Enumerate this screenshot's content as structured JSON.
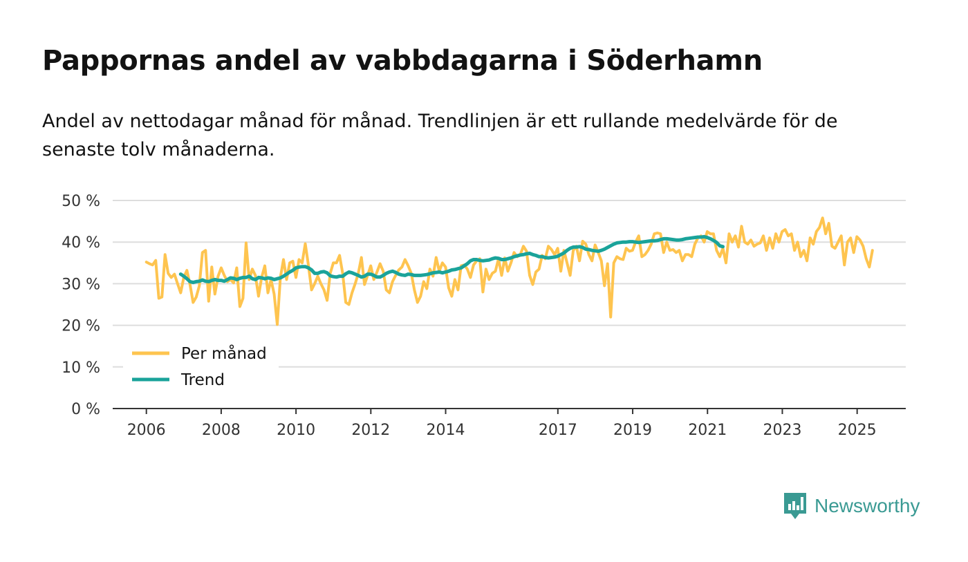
{
  "header": {
    "title": "Pappornas andel av vabbdagarna i Söderhamn",
    "subtitle": "Andel av nettodagar månad för månad. Trendlinjen är ett rullande medelvärde för de senaste tolv månaderna."
  },
  "brand": {
    "name": "Newsworthy",
    "icon": "bar-chart-icon",
    "color": "#3a9a93"
  },
  "colors": {
    "monthly": "#FEC44F",
    "trend": "#1AA39A",
    "grid": "#dddddd",
    "axis": "#333333"
  },
  "chart_data": {
    "type": "line",
    "title": "Pappornas andel av vabbdagarna i Söderhamn",
    "ylabel": "",
    "xlabel": "",
    "ylim": [
      0,
      50
    ],
    "xlim": [
      2005.1,
      2026.3
    ],
    "y_ticks": [
      0,
      10,
      20,
      30,
      40,
      50
    ],
    "y_tick_labels": [
      "0 %",
      "10 %",
      "20 %",
      "30 %",
      "40 %",
      "50 %"
    ],
    "x_ticks": [
      2006,
      2008,
      2010,
      2012,
      2014,
      2017,
      2019,
      2021,
      2023,
      2025
    ],
    "x_tick_labels": [
      "2006",
      "2008",
      "2010",
      "2012",
      "2014",
      "2017",
      "2019",
      "2021",
      "2023",
      "2025"
    ],
    "legend_position": "bottom-left",
    "series": [
      {
        "name": "Per månad",
        "color": "#FEC44F",
        "start_year": 2006.0,
        "step": 0.0833,
        "values": [
          35.2,
          34.8,
          34.5,
          35.6,
          26.5,
          26.8,
          37.0,
          32.5,
          31.5,
          32.3,
          30.0,
          27.8,
          31.5,
          33.2,
          29.8,
          25.5,
          26.8,
          29.5,
          37.5,
          38.0,
          25.8,
          34.0,
          27.5,
          31.8,
          33.8,
          32.0,
          30.5,
          31.0,
          30.2,
          33.8,
          24.5,
          26.5,
          39.8,
          31.0,
          33.5,
          32.0,
          27.0,
          31.5,
          34.3,
          27.8,
          31.0,
          27.5,
          20.2,
          31.5,
          35.8,
          31.0,
          35.0,
          35.4,
          31.5,
          35.8,
          35.0,
          39.6,
          34.5,
          28.5,
          30.0,
          31.8,
          30.0,
          28.5,
          26.0,
          32.5,
          35.0,
          35.0,
          36.8,
          32.5,
          25.5,
          25.0,
          27.8,
          30.0,
          32.5,
          36.3,
          29.8,
          32.0,
          34.3,
          31.0,
          32.8,
          34.8,
          33.0,
          28.5,
          27.8,
          30.5,
          32.0,
          33.3,
          34.0,
          35.8,
          34.3,
          32.5,
          28.5,
          25.5,
          27.0,
          30.5,
          28.8,
          33.5,
          31.8,
          36.3,
          33.0,
          35.0,
          34.0,
          29.0,
          27.0,
          31.0,
          28.5,
          34.3,
          34.5,
          33.5,
          31.5,
          34.5,
          35.5,
          36.0,
          28.0,
          33.5,
          31.0,
          32.5,
          33.0,
          36.0,
          32.0,
          36.2,
          33.0,
          35.0,
          37.5,
          36.5,
          37.0,
          39.0,
          37.8,
          32.0,
          29.8,
          32.8,
          33.5,
          36.8,
          36.0,
          39.0,
          38.2,
          37.0,
          38.5,
          33.0,
          38.0,
          35.0,
          32.0,
          38.0,
          39.0,
          35.5,
          40.2,
          39.5,
          37.0,
          35.5,
          39.3,
          37.5,
          35.5,
          29.5,
          34.8,
          22.0,
          35.0,
          36.5,
          36.0,
          35.8,
          38.5,
          37.8,
          38.0,
          40.0,
          41.5,
          36.5,
          37.0,
          38.0,
          39.5,
          42.0,
          42.2,
          42.0,
          37.5,
          40.0,
          38.0,
          38.2,
          37.5,
          38.0,
          35.5,
          37.0,
          37.0,
          36.5,
          39.5,
          41.0,
          41.5,
          40.0,
          42.5,
          42.0,
          42.0,
          38.0,
          36.5,
          38.5,
          35.0,
          42.0,
          40.0,
          41.5,
          38.8,
          43.8,
          40.0,
          39.5,
          40.5,
          39.0,
          39.5,
          39.8,
          41.5,
          38.0,
          41.0,
          38.5,
          42.0,
          40.0,
          42.5,
          43.0,
          41.5,
          42.0,
          38.0,
          40.0,
          36.5,
          38.0,
          35.5,
          41.0,
          39.5,
          42.5,
          43.5,
          45.8,
          42.0,
          44.5,
          39.0,
          38.5,
          40.0,
          41.5,
          34.5,
          40.0,
          41.0,
          37.5,
          41.3,
          40.5,
          39.0,
          36.0,
          34.0,
          38.0
        ]
      },
      {
        "name": "Trend",
        "color": "#1AA39A",
        "start_year": 2006.9167,
        "step": 0.0833,
        "values": [
          32.3,
          31.8,
          31.2,
          30.5,
          30.3,
          30.5,
          30.6,
          30.9,
          30.6,
          30.5,
          30.8,
          31.0,
          30.8,
          30.8,
          30.6,
          31.0,
          31.4,
          31.3,
          31.0,
          31.3,
          31.5,
          31.5,
          31.8,
          31.2,
          31.0,
          31.5,
          31.4,
          31.2,
          31.4,
          31.3,
          31.0,
          31.2,
          31.4,
          31.8,
          32.3,
          32.8,
          33.2,
          33.8,
          34.0,
          34.1,
          34.1,
          33.8,
          33.3,
          32.5,
          32.5,
          32.8,
          32.9,
          32.6,
          31.9,
          31.7,
          31.6,
          31.8,
          31.8,
          32.4,
          32.8,
          32.6,
          32.3,
          32.0,
          31.6,
          31.8,
          32.3,
          32.3,
          32.0,
          31.6,
          31.6,
          32.0,
          32.5,
          32.8,
          33.0,
          32.7,
          32.3,
          32.1,
          32.0,
          32.3,
          32.2,
          32.0,
          32.0,
          32.0,
          32.1,
          32.2,
          32.4,
          32.6,
          32.7,
          32.8,
          32.6,
          32.8,
          33.0,
          33.3,
          33.4,
          33.6,
          33.8,
          34.3,
          34.8,
          35.5,
          35.8,
          35.8,
          35.6,
          35.5,
          35.6,
          35.7,
          36.0,
          36.2,
          36.1,
          35.8,
          35.8,
          36.0,
          36.2,
          36.5,
          36.7,
          36.9,
          37.0,
          37.2,
          37.3,
          37.0,
          36.8,
          36.5,
          36.5,
          36.3,
          36.2,
          36.3,
          36.4,
          36.6,
          37.0,
          37.4,
          38.0,
          38.5,
          38.8,
          38.8,
          38.9,
          38.7,
          38.3,
          38.2,
          38.0,
          37.9,
          37.8,
          38.0,
          38.3,
          38.7,
          39.1,
          39.5,
          39.8,
          39.9,
          40.0,
          40.0,
          40.1,
          40.1,
          40.0,
          39.9,
          40.0,
          40.1,
          40.2,
          40.3,
          40.3,
          40.4,
          40.6,
          40.8,
          40.8,
          40.7,
          40.6,
          40.5,
          40.5,
          40.6,
          40.8,
          40.9,
          41.0,
          41.1,
          41.2,
          41.2,
          41.3,
          41.1,
          40.8,
          40.4,
          39.9,
          39.1,
          38.9
        ]
      }
    ]
  }
}
